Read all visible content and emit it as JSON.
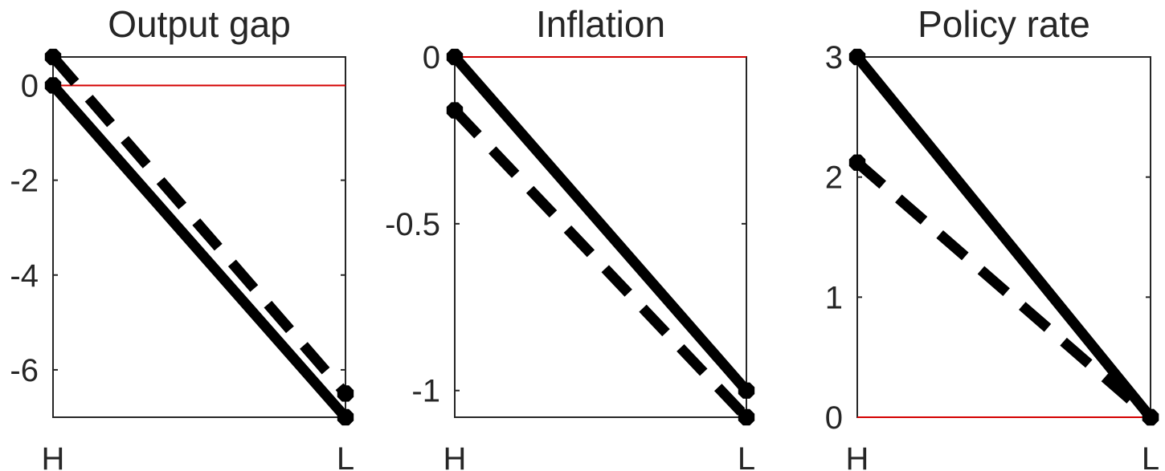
{
  "chart_data": [
    {
      "type": "line",
      "title": "Output gap",
      "categories": [
        "H",
        "L"
      ],
      "ylim": [
        -7,
        0.6
      ],
      "yticks": [
        -6,
        -4,
        -2,
        0
      ],
      "ytick_labels": [
        "-6",
        "-4",
        "-2",
        "0"
      ],
      "zero_line": 0,
      "series": [
        {
          "style": "solid",
          "values": [
            0,
            -7
          ]
        },
        {
          "style": "dashed",
          "values": [
            0.6,
            -6.5
          ]
        }
      ]
    },
    {
      "type": "line",
      "title": "Inflation",
      "categories": [
        "H",
        "L"
      ],
      "ylim": [
        -1.08,
        0
      ],
      "yticks": [
        -1,
        -0.5,
        0
      ],
      "ytick_labels": [
        "-1",
        "-0.5",
        "0"
      ],
      "zero_line": 0,
      "series": [
        {
          "style": "solid",
          "values": [
            0,
            -1
          ]
        },
        {
          "style": "dashed",
          "values": [
            -0.16,
            -1.08
          ]
        }
      ]
    },
    {
      "type": "line",
      "title": "Policy rate",
      "categories": [
        "H",
        "L"
      ],
      "ylim": [
        0,
        3
      ],
      "yticks": [
        0,
        1,
        2,
        3
      ],
      "ytick_labels": [
        "0",
        "1",
        "2",
        "3"
      ],
      "zero_line": 0,
      "series": [
        {
          "style": "solid",
          "values": [
            3,
            0
          ]
        },
        {
          "style": "dashed",
          "values": [
            2.12,
            0
          ]
        }
      ]
    }
  ],
  "colors": {
    "axes": "#262626",
    "series": "#000000",
    "zero_line": "#d40000"
  }
}
